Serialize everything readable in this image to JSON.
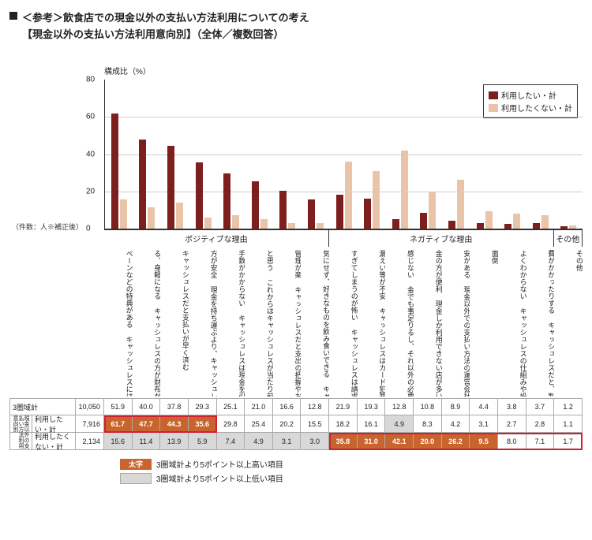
{
  "title_prefix": "■",
  "title": "＜参考＞飲食店での現金以外の支払い方法利用についての考え",
  "subtitle": "【現金以外の支払い方法利用意向別】（全体／複数回答）",
  "chart": {
    "type": "bar",
    "y_axis_label": "構成比（%）",
    "ylim": [
      0,
      80
    ],
    "ytick_step": 20,
    "series": [
      {
        "name": "利用したい・計",
        "color": "#7d1f1f"
      },
      {
        "name": "利用したくない・計",
        "color": "#e9c4a8"
      }
    ],
    "sections": [
      {
        "label": "ポジティブな理由",
        "span": 8
      },
      {
        "label": "ネガティブな理由",
        "span": 8
      },
      {
        "label": "その他",
        "span": 1
      }
    ],
    "categories": [
      "ペーンなどの特典がある キャッシュレスにはポイントやキャン",
      "る、身軽になる キャッシュレスの方が財布がスッキリす",
      "キャッシュレスだと支払いが早く済む",
      "方が安全 現金を持ち運ぶより、キャッシュレスの",
      "手数がかからない キャッシュレスは現金を引き出す手間や",
      "と思う これからはキャッシュレスが当たり前だ",
      "管理が楽 キャッシュレスだと支出の把握やお金の",
      "気にせず、好きなものを飲み食いできる キャッシュレスは手持ちの現金の金額を",
      "すぎてしまうのが怖い キャッシュレスは請求額が膨らむ・使い",
      "漏えい等が不安 キャッシュレスはカード犯罪や個人情報",
      "感じない 金でも事足りるし、それ以外の必要性を",
      "金の方が便利 現金しか利用できない店が多いため、現",
      "安がある 現金以外での支払い方法の運営会社に不",
      "面倒",
      "よくわからない キャッシュレスの仕組みや設定・操作が",
      "費がかかったりする キャッシュレスだと、割高になったり会",
      "その他"
    ],
    "values_want": [
      61.7,
      47.7,
      44.3,
      35.6,
      29.8,
      25.4,
      20.2,
      15.5,
      18.2,
      16.1,
      4.9,
      8.3,
      4.2,
      3.1,
      2.7,
      2.8,
      1.1
    ],
    "values_notwant": [
      15.6,
      11.4,
      13.9,
      5.9,
      7.4,
      4.9,
      3.1,
      3.0,
      35.8,
      31.0,
      42.1,
      20.0,
      26.2,
      9.5,
      8.0,
      7.1,
      1.7
    ]
  },
  "table": {
    "count_header": "（件数：人※補正後）",
    "rows": [
      {
        "label": "3圏域計",
        "count": "10,050",
        "vals": [
          51.9,
          40.0,
          37.8,
          29.3,
          25.1,
          21.0,
          16.6,
          12.8,
          21.9,
          19.3,
          12.8,
          10.8,
          8.9,
          4.4,
          3.8,
          3.7,
          1.2
        ],
        "flags": [
          "",
          "",
          "",
          "",
          "",
          "",
          "",
          "",
          "",
          "",
          "",
          "",
          "",
          "",
          "",
          "",
          ""
        ]
      },
      {
        "label": "利用したい・計",
        "count": "7,916",
        "group": "現金以外の支払い方法利用意向別",
        "vals": [
          61.7,
          47.7,
          44.3,
          35.6,
          29.8,
          25.4,
          20.2,
          15.5,
          18.2,
          16.1,
          4.9,
          8.3,
          4.2,
          3.1,
          2.7,
          2.8,
          1.1
        ],
        "flags": [
          "hi",
          "hi",
          "hi",
          "hi",
          "",
          "",
          "",
          "",
          "",
          "",
          "lo",
          "",
          "",
          "",
          "",
          "",
          ""
        ]
      },
      {
        "label": "利用したくない・計",
        "count": "2,134",
        "vals": [
          15.6,
          11.4,
          13.9,
          5.9,
          7.4,
          4.9,
          3.1,
          3.0,
          35.8,
          31.0,
          42.1,
          20.0,
          26.2,
          9.5,
          8.0,
          7.1,
          1.7
        ],
        "flags": [
          "lo",
          "lo",
          "lo",
          "lo",
          "lo",
          "lo",
          "lo",
          "lo",
          "hi",
          "hi",
          "hi",
          "hi",
          "hi",
          "hi",
          "",
          "",
          ""
        ]
      }
    ],
    "red_boxes": [
      {
        "row": 1,
        "from": 0,
        "to": 3
      },
      {
        "row": 2,
        "from": 8,
        "to": 16
      }
    ]
  },
  "footer": {
    "hi_swatch": "太字",
    "hi_text": "3圏域計より5ポイント以上高い項目",
    "lo_text": "3圏域計より5ポイント以上低い項目"
  },
  "colors": {
    "hi_bg": "#c9642e",
    "lo_bg": "#d8d8d8",
    "grid": "#cccccc",
    "red": "#c92a2a"
  }
}
